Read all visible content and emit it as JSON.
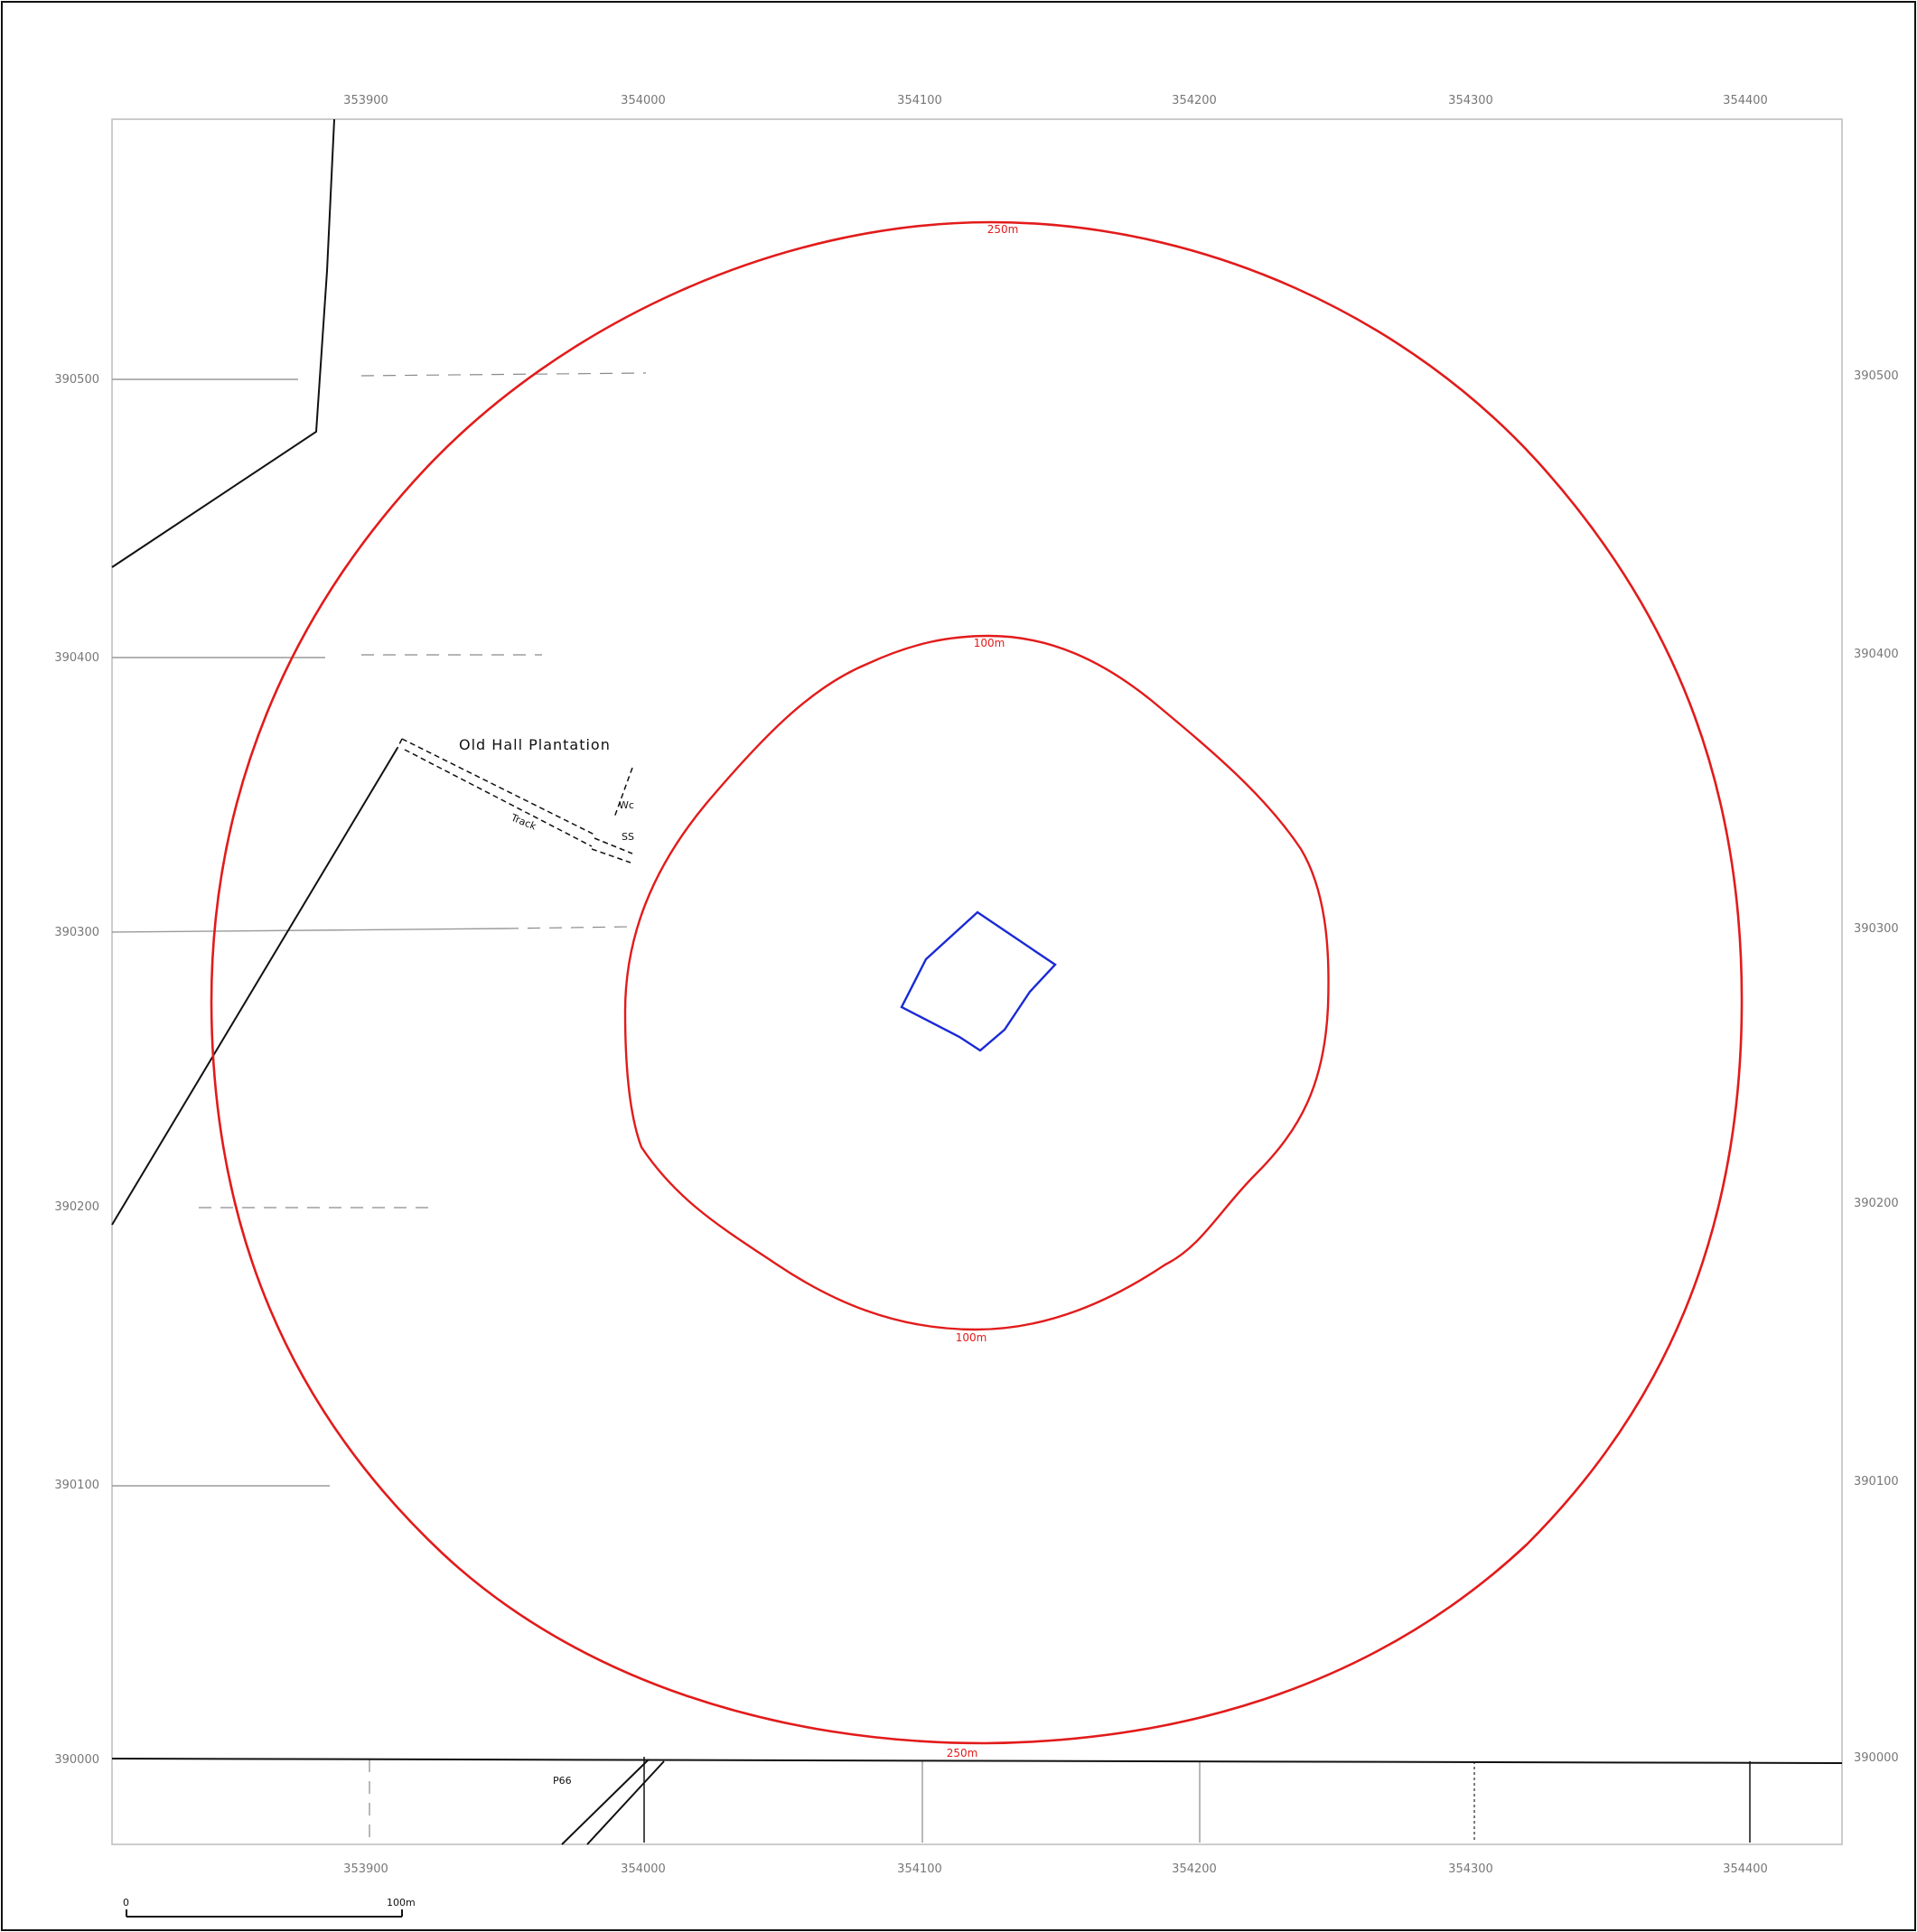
{
  "colors": {
    "buffer_ring": "#e21b1b",
    "site_boundary": "#1a2ad6",
    "linework": "#111111",
    "grid_labels": "#777777"
  },
  "grid": {
    "eastings_top": [
      "353900",
      "354000",
      "354100",
      "354200",
      "354300",
      "354400"
    ],
    "eastings_bottom": [
      "353900",
      "354000",
      "354100",
      "354200",
      "354300",
      "354400"
    ],
    "northings_left": [
      "390500",
      "390400",
      "390300",
      "390200",
      "390100",
      "390000"
    ],
    "northings_right": [
      "390500",
      "390400",
      "390300",
      "390200",
      "390100",
      "390000"
    ]
  },
  "rings": {
    "outer_top": "250m",
    "outer_bottom": "250m",
    "inner_top": "100m",
    "inner_bottom": "100m"
  },
  "features": {
    "plantation": "Old Hall Plantation",
    "track": "Track",
    "wc": "Wc",
    "ss": "SS",
    "path": "P66"
  },
  "scale_bar": {
    "start": "0",
    "end": "100m"
  }
}
